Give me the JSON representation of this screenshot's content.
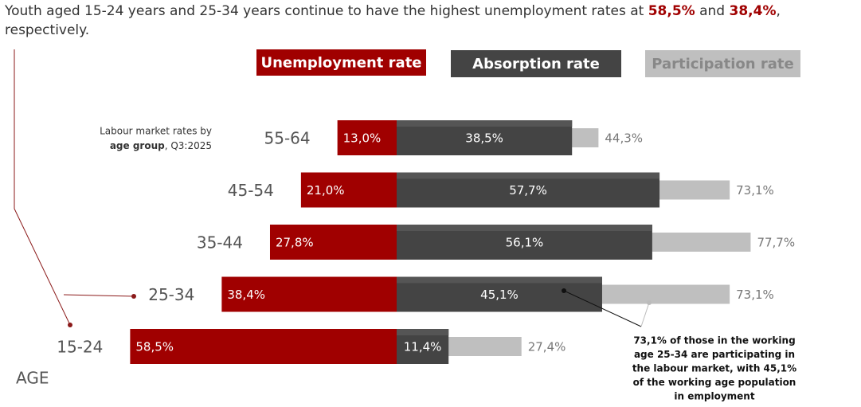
{
  "chart_data": {
    "type": "diverging-bar",
    "title_parts": [
      "Youth aged 15-24 years and 25-34 years continue to have the highest unemployment rates at ",
      "58,5%",
      " and ",
      "38,4%",
      ",",
      "respectively."
    ],
    "note_parts": [
      "Labour market rates by",
      "age group",
      ", Q3:2025"
    ],
    "axis_label": "AGE",
    "categories": [
      "55-64",
      "45-54",
      "35-44",
      "25-34",
      "15-24"
    ],
    "series": [
      {
        "name": "Unemployment rate",
        "color": "#a00000",
        "values": [
          13.0,
          21.0,
          27.8,
          38.4,
          58.5
        ],
        "value_labels": [
          "13,0%",
          "21,0%",
          "27,8%",
          "38,4%",
          "58,5%"
        ]
      },
      {
        "name": "Absorption rate",
        "color": "#444444",
        "values": [
          38.5,
          57.7,
          56.1,
          45.1,
          11.4
        ],
        "value_labels": [
          "38,5%",
          "57,7%",
          "56,1%",
          "45,1%",
          "11,4%"
        ]
      },
      {
        "name": "Participation rate",
        "color": "#bfbfbf",
        "values": [
          44.3,
          73.1,
          77.7,
          73.1,
          27.4
        ],
        "value_labels": [
          "44,3%",
          "73,1%",
          "77,7%",
          "73,1%",
          "27,4%"
        ]
      }
    ],
    "annotation_lines": [
      "73,1% of those in the working",
      "age  25-34 are participating in",
      "the labour market, with 45,1%",
      "of  the working age population",
      "in employment"
    ]
  }
}
